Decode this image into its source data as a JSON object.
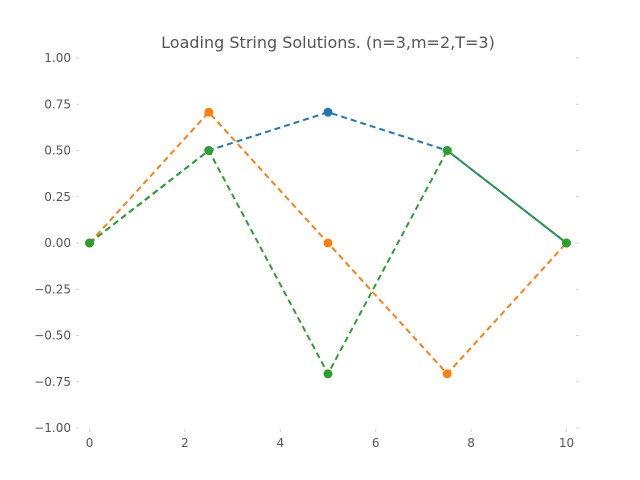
{
  "chart_data": {
    "type": "line",
    "title": "Loading String Solutions. (n=3,m=2,T=3)",
    "xlabel": "",
    "ylabel": "",
    "xlim": [
      -0.2,
      10.2
    ],
    "ylim": [
      -1.0,
      1.0
    ],
    "xticks": [
      0,
      2,
      4,
      6,
      8,
      10
    ],
    "xtick_labels": [
      "0",
      "2",
      "4",
      "6",
      "8",
      "10"
    ],
    "yticks": [
      1.0,
      0.75,
      0.5,
      0.25,
      0.0,
      -0.25,
      -0.5,
      -0.75,
      -1.0
    ],
    "ytick_labels": [
      "1.00",
      "0.75",
      "0.50",
      "0.25",
      "0.00",
      "−0.25",
      "−0.50",
      "−0.75",
      "−1.00"
    ],
    "grid": false,
    "legend": "none",
    "series": [
      {
        "color": "#1f77b4",
        "x": [
          0,
          2.5,
          5,
          7.5,
          10
        ],
        "y": [
          0,
          0.5,
          0.707,
          0.5,
          0
        ]
      },
      {
        "color": "#ff7f0e",
        "x": [
          0,
          2.5,
          5,
          7.5,
          10
        ],
        "y": [
          0,
          0.707,
          0,
          -0.707,
          0
        ]
      },
      {
        "color": "#2ca02c",
        "x": [
          0,
          2.5,
          5,
          7.5,
          10
        ],
        "y": [
          0,
          0.5,
          -0.707,
          0.5,
          0
        ]
      }
    ]
  }
}
